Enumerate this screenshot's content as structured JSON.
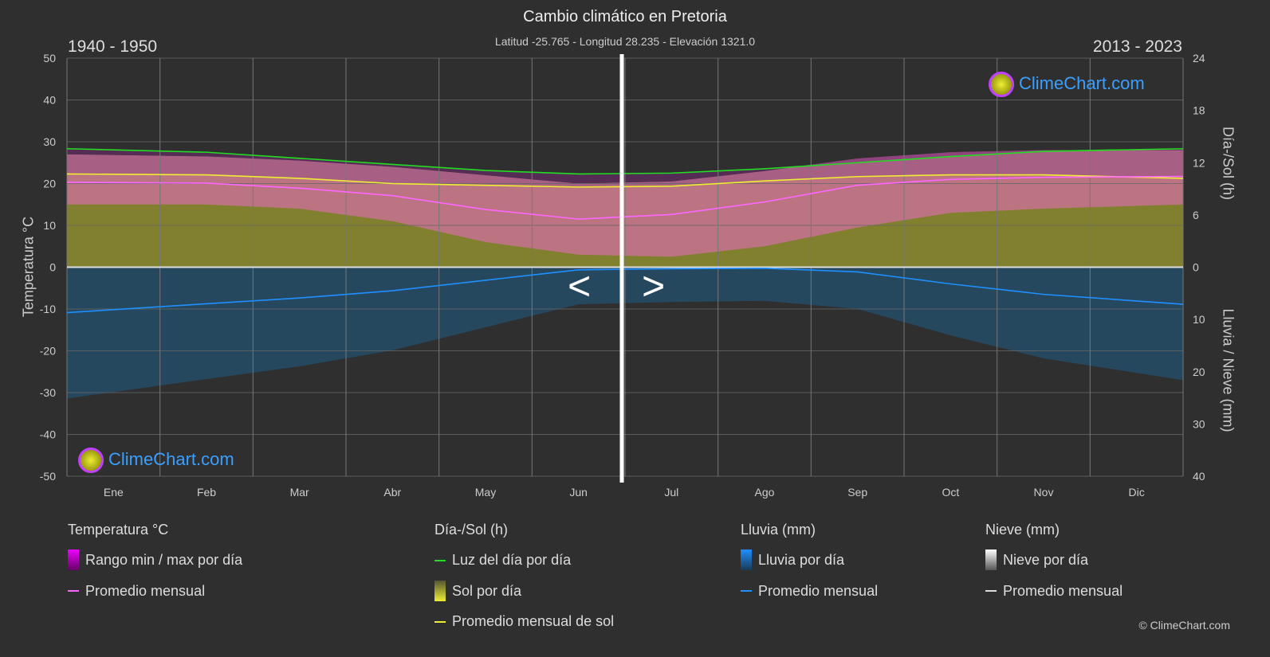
{
  "title": "Cambio climático en Pretoria",
  "subtitle": "Latitud -25.765 - Longitud 28.235 - Elevación 1321.0",
  "period_left": "1940 - 1950",
  "period_right": "2013 - 2023",
  "logo_text": "ClimeChart.com",
  "copyright": "© ClimeChart.com",
  "nav": {
    "prev": "<",
    "next": ">"
  },
  "legend": {
    "temp": {
      "title": "Temperatura °C",
      "items": [
        "Rango min / max por día",
        "Promedio mensual"
      ]
    },
    "sun": {
      "title": "Día-/Sol (h)",
      "items": [
        "Luz del día por día",
        "Sol por día",
        "Promedio mensual de sol"
      ]
    },
    "rain": {
      "title": "Lluvia (mm)",
      "items": [
        "Lluvia por día",
        "Promedio mensual"
      ]
    },
    "snow": {
      "title": "Nieve (mm)",
      "items": [
        "Nieve por día",
        "Promedio mensual"
      ]
    }
  },
  "colors": {
    "temp_avg": "#ff66ff",
    "daylight": "#22dd22",
    "sun_avg": "#eeee33",
    "rain_avg": "#1e90ff",
    "temp_band": "#d070a0",
    "sun_band": "#8a8a30",
    "rain_band": "#1f5a80",
    "divider": "#ffffff"
  },
  "chart_data": {
    "type": "area",
    "categories": [
      "Ene",
      "Feb",
      "Mar",
      "Abr",
      "May",
      "Jun",
      "Jul",
      "Ago",
      "Sep",
      "Oct",
      "Nov",
      "Dic"
    ],
    "left_axis": {
      "label": "Temperatura °C",
      "range": [
        -50,
        50
      ],
      "ticks": [
        50,
        40,
        30,
        20,
        10,
        0,
        -10,
        -20,
        -30,
        -40,
        -50
      ]
    },
    "right_axis_top": {
      "label": "Día-/Sol (h)",
      "range": [
        0,
        24
      ],
      "ticks": [
        24,
        18,
        12,
        6,
        0
      ]
    },
    "right_axis_bottom": {
      "label": "Lluvia / Nieve (mm)",
      "range": [
        0,
        40
      ],
      "ticks": [
        0,
        10,
        20,
        30,
        40
      ]
    },
    "grid": true,
    "series": [
      {
        "name": "Promedio mensual",
        "axis": "temp",
        "values": [
          20.3,
          20.1,
          18.9,
          17.1,
          13.8,
          11.5,
          12.6,
          15.6,
          19.6,
          21.0,
          21.5,
          21.7
        ]
      },
      {
        "name": "Rango min / max por día",
        "axis": "temp",
        "max": [
          27,
          26.5,
          25.5,
          24,
          22,
          20,
          20.5,
          23,
          26,
          27.5,
          28,
          28
        ],
        "min": [
          15,
          15,
          14,
          11,
          6,
          3,
          2.5,
          5,
          9.5,
          13,
          14,
          15
        ]
      },
      {
        "name": "Luz del día por día",
        "axis": "hours",
        "values": [
          13.6,
          13.2,
          12.5,
          11.8,
          11.1,
          10.7,
          10.8,
          11.3,
          12.0,
          12.7,
          13.3,
          13.6
        ]
      },
      {
        "name": "Promedio mensual de sol",
        "axis": "hours",
        "values": [
          10.7,
          10.6,
          10.2,
          9.6,
          9.4,
          9.2,
          9.3,
          9.9,
          10.4,
          10.6,
          10.6,
          10.2
        ]
      },
      {
        "name": "Lluvia promedio mensual",
        "axis": "rain",
        "values": [
          8.7,
          7.0,
          5.9,
          4.5,
          2.5,
          0.5,
          0.3,
          0.2,
          0.9,
          3.2,
          5.2,
          7.1
        ]
      }
    ]
  }
}
